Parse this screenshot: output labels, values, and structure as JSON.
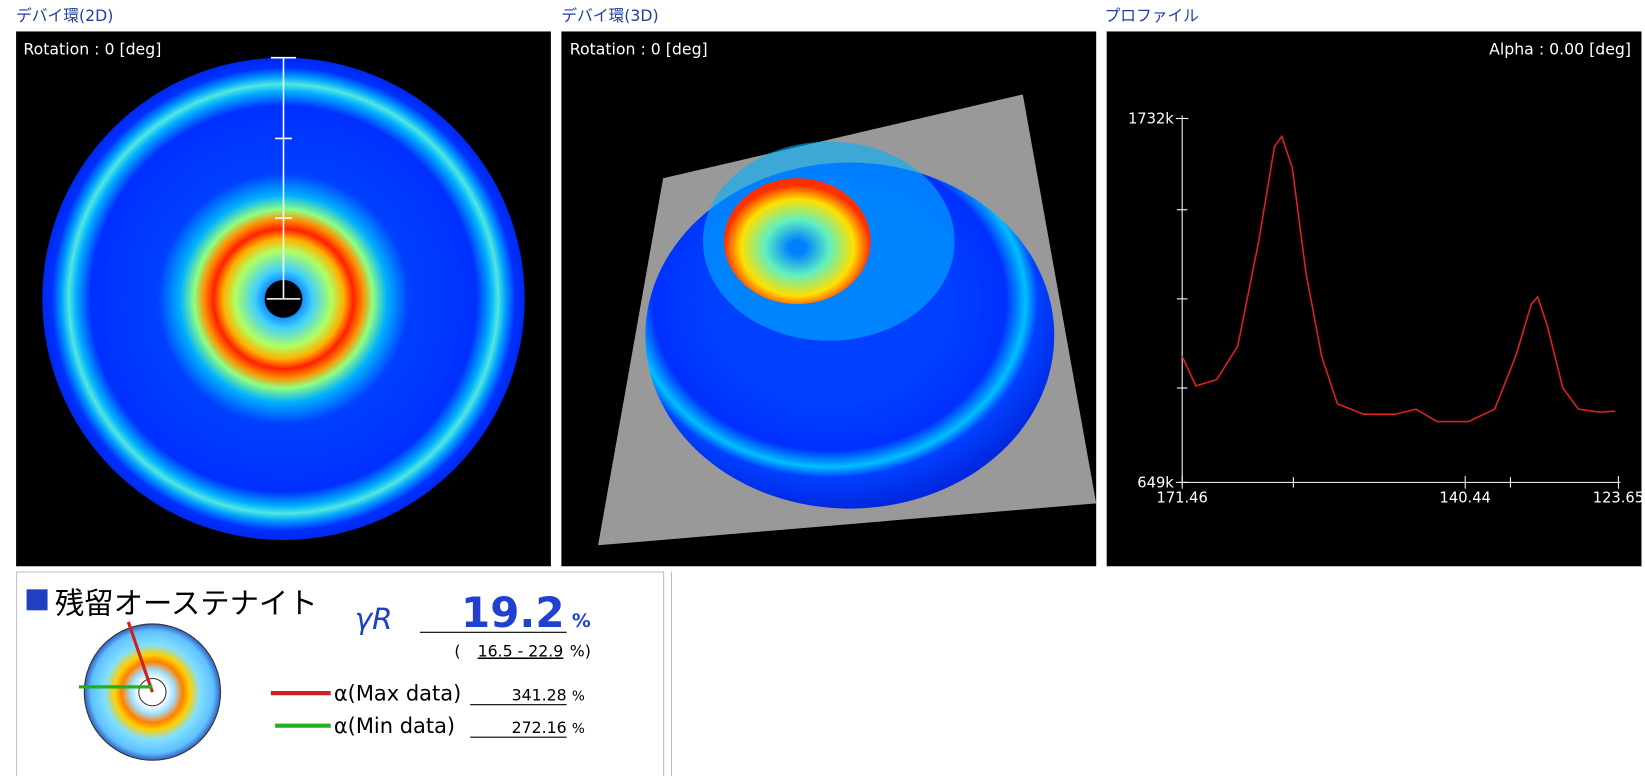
{
  "panels": {
    "debye_2d": {
      "title": "デバイ環(2D)",
      "rotation": "Rotation : 0 [deg]"
    },
    "debye_3d": {
      "title": "デバイ環(3D)",
      "rotation": "Rotation : 0 [deg]"
    },
    "profile": {
      "title": "プロファイル",
      "alpha": "Alpha : 0.00 [deg]",
      "chart_data": {
        "type": "line",
        "x": [
          171.46,
          169.97,
          167.67,
          165.37,
          163.07,
          161.35,
          160.54,
          159.39,
          157.9,
          156.17,
          154.45,
          151.58,
          148.13,
          145.83,
          143.53,
          140.08,
          137.21,
          134.91,
          133.19,
          132.5,
          131.46,
          129.74,
          128.02,
          125.72,
          123.99
        ],
        "series": [
          {
            "color": "#e02020",
            "values": [
              1024000,
              936000,
              955000,
              1055000,
              1367000,
              1648000,
              1679000,
              1585000,
              1273000,
              1024000,
              883000,
              852000,
              852000,
              867000,
              830000,
              830000,
              867000,
              1024000,
              1180000,
              1201000,
              1117000,
              930000,
              867000,
              858000,
              861000
            ]
          }
        ],
        "xlim": [
          171.46,
          123.65
        ],
        "xticks": [
          171.46,
          140.44,
          123.65
        ],
        "ylim": [
          649000,
          1732000
        ],
        "yticks": [
          {
            "value": 1732000,
            "label": "1732k"
          },
          {
            "value": 649000,
            "label": "649k"
          }
        ]
      }
    }
  },
  "result": {
    "title": "残留オーステナイト",
    "gamma_label": "γR",
    "value": "19.2",
    "unit": "%",
    "range_open": "(",
    "range": "16.5 - 22.9",
    "range_close": "%)",
    "max_label": "α(Max data)",
    "max_value": "341.28",
    "min_label": "α(Min data)",
    "min_value": "272.16"
  }
}
